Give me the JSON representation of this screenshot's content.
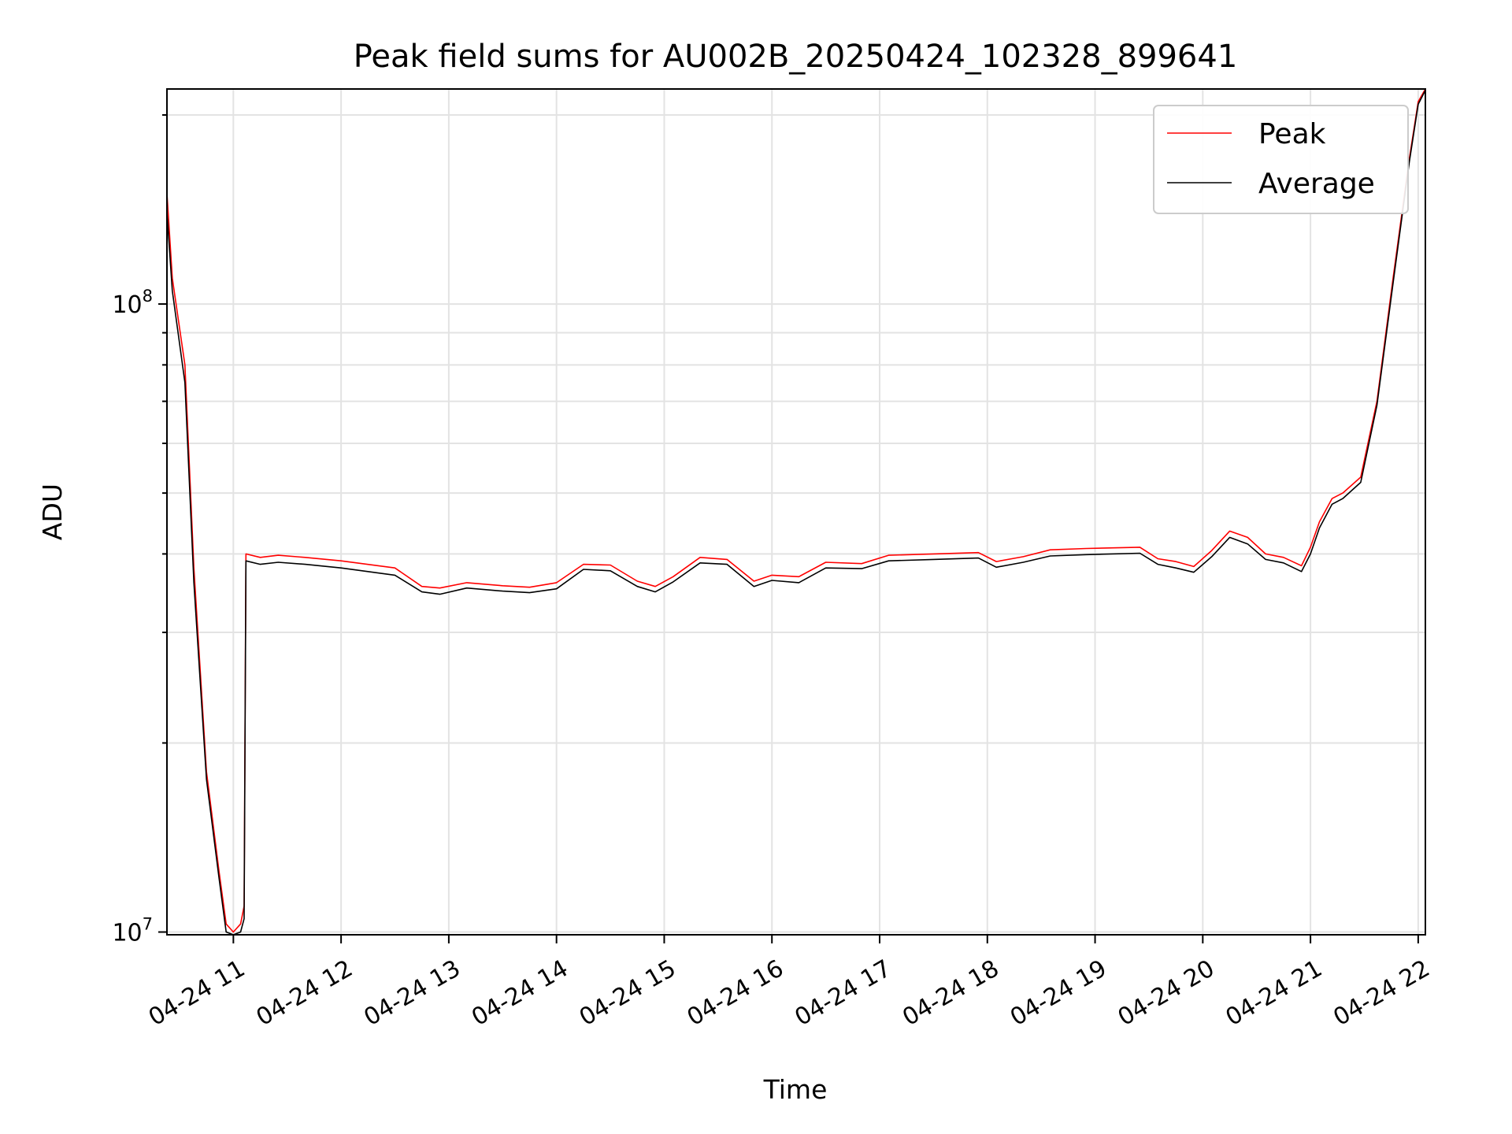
{
  "chart_data": {
    "type": "line",
    "title": "Peak field sums for AU002B_20250424_102328_899641",
    "xlabel": "Time",
    "ylabel": "ADU",
    "yscale": "log",
    "ylim": [
      9900000,
      220000000
    ],
    "xlim": [
      "2025-04-24 10:23",
      "2025-04-24 22:04"
    ],
    "grid": true,
    "legend_position": "top-right",
    "x_tick_labels": [
      "04-24 11",
      "04-24 12",
      "04-24 13",
      "04-24 14",
      "04-24 15",
      "04-24 16",
      "04-24 17",
      "04-24 18",
      "04-24 19",
      "04-24 20",
      "04-24 21",
      "04-24 22"
    ],
    "y_tick_labels": [
      {
        "base": "10",
        "exp": "7",
        "value": 10000000
      },
      {
        "base": "10",
        "exp": "8",
        "value": 100000000
      }
    ],
    "x": [
      "2025-04-24 10:23",
      "2025-04-24 10:26",
      "2025-04-24 10:33",
      "2025-04-24 10:38",
      "2025-04-24 10:45",
      "2025-04-24 10:52",
      "2025-04-24 10:56",
      "2025-04-24 11:00",
      "2025-04-24 11:04",
      "2025-04-24 11:06",
      "2025-04-24 11:07",
      "2025-04-24 11:15",
      "2025-04-24 11:25",
      "2025-04-24 11:40",
      "2025-04-24 12:00",
      "2025-04-24 12:30",
      "2025-04-24 12:45",
      "2025-04-24 12:55",
      "2025-04-24 13:10",
      "2025-04-24 13:30",
      "2025-04-24 13:45",
      "2025-04-24 14:00",
      "2025-04-24 14:15",
      "2025-04-24 14:30",
      "2025-04-24 14:45",
      "2025-04-24 14:55",
      "2025-04-24 15:05",
      "2025-04-24 15:20",
      "2025-04-24 15:35",
      "2025-04-24 15:50",
      "2025-04-24 16:00",
      "2025-04-24 16:15",
      "2025-04-24 16:30",
      "2025-04-24 16:50",
      "2025-04-24 17:05",
      "2025-04-24 17:30",
      "2025-04-24 17:55",
      "2025-04-24 18:05",
      "2025-04-24 18:20",
      "2025-04-24 18:35",
      "2025-04-24 18:55",
      "2025-04-24 19:25",
      "2025-04-24 19:35",
      "2025-04-24 19:45",
      "2025-04-24 19:55",
      "2025-04-24 20:05",
      "2025-04-24 20:15",
      "2025-04-24 20:25",
      "2025-04-24 20:35",
      "2025-04-24 20:45",
      "2025-04-24 20:55",
      "2025-04-24 21:00",
      "2025-04-24 21:05",
      "2025-04-24 21:12",
      "2025-04-24 21:18",
      "2025-04-24 21:28",
      "2025-04-24 21:37",
      "2025-04-24 21:46",
      "2025-04-24 21:55",
      "2025-04-24 22:00",
      "2025-04-24 22:04"
    ],
    "series": [
      {
        "name": "Peak",
        "color": "#ff0000",
        "values": [
          150000000,
          110000000,
          80000000,
          38000000,
          18000000,
          12500000,
          10300000,
          10000000,
          10300000,
          11000000,
          40000000,
          39500000,
          39800000,
          39500000,
          39000000,
          38000000,
          35500000,
          35300000,
          36000000,
          35600000,
          35400000,
          36000000,
          38500000,
          38400000,
          36200000,
          35500000,
          36800000,
          39500000,
          39200000,
          36200000,
          37000000,
          36800000,
          38800000,
          38600000,
          39800000,
          40000000,
          40200000,
          38900000,
          39600000,
          40600000,
          40800000,
          41000000,
          39300000,
          38900000,
          38200000,
          40500000,
          43500000,
          42500000,
          40000000,
          39500000,
          38300000,
          41000000,
          45000000,
          49000000,
          50000000,
          53000000,
          70000000,
          110000000,
          170000000,
          210000000,
          220000000
        ]
      },
      {
        "name": "Average",
        "color": "#000000",
        "values": [
          140000000,
          105000000,
          75000000,
          36000000,
          17500000,
          12200000,
          10000000,
          9900000,
          10000000,
          10500000,
          39000000,
          38500000,
          38800000,
          38500000,
          38000000,
          37000000,
          34800000,
          34500000,
          35300000,
          34900000,
          34700000,
          35200000,
          37800000,
          37600000,
          35500000,
          34800000,
          36100000,
          38700000,
          38500000,
          35500000,
          36300000,
          36000000,
          38000000,
          37900000,
          39000000,
          39200000,
          39400000,
          38100000,
          38800000,
          39700000,
          39900000,
          40100000,
          38500000,
          38000000,
          37400000,
          39600000,
          42500000,
          41500000,
          39200000,
          38700000,
          37500000,
          40000000,
          44000000,
          48000000,
          49000000,
          52000000,
          69000000,
          108000000,
          168000000,
          208000000,
          219000000
        ]
      }
    ]
  }
}
